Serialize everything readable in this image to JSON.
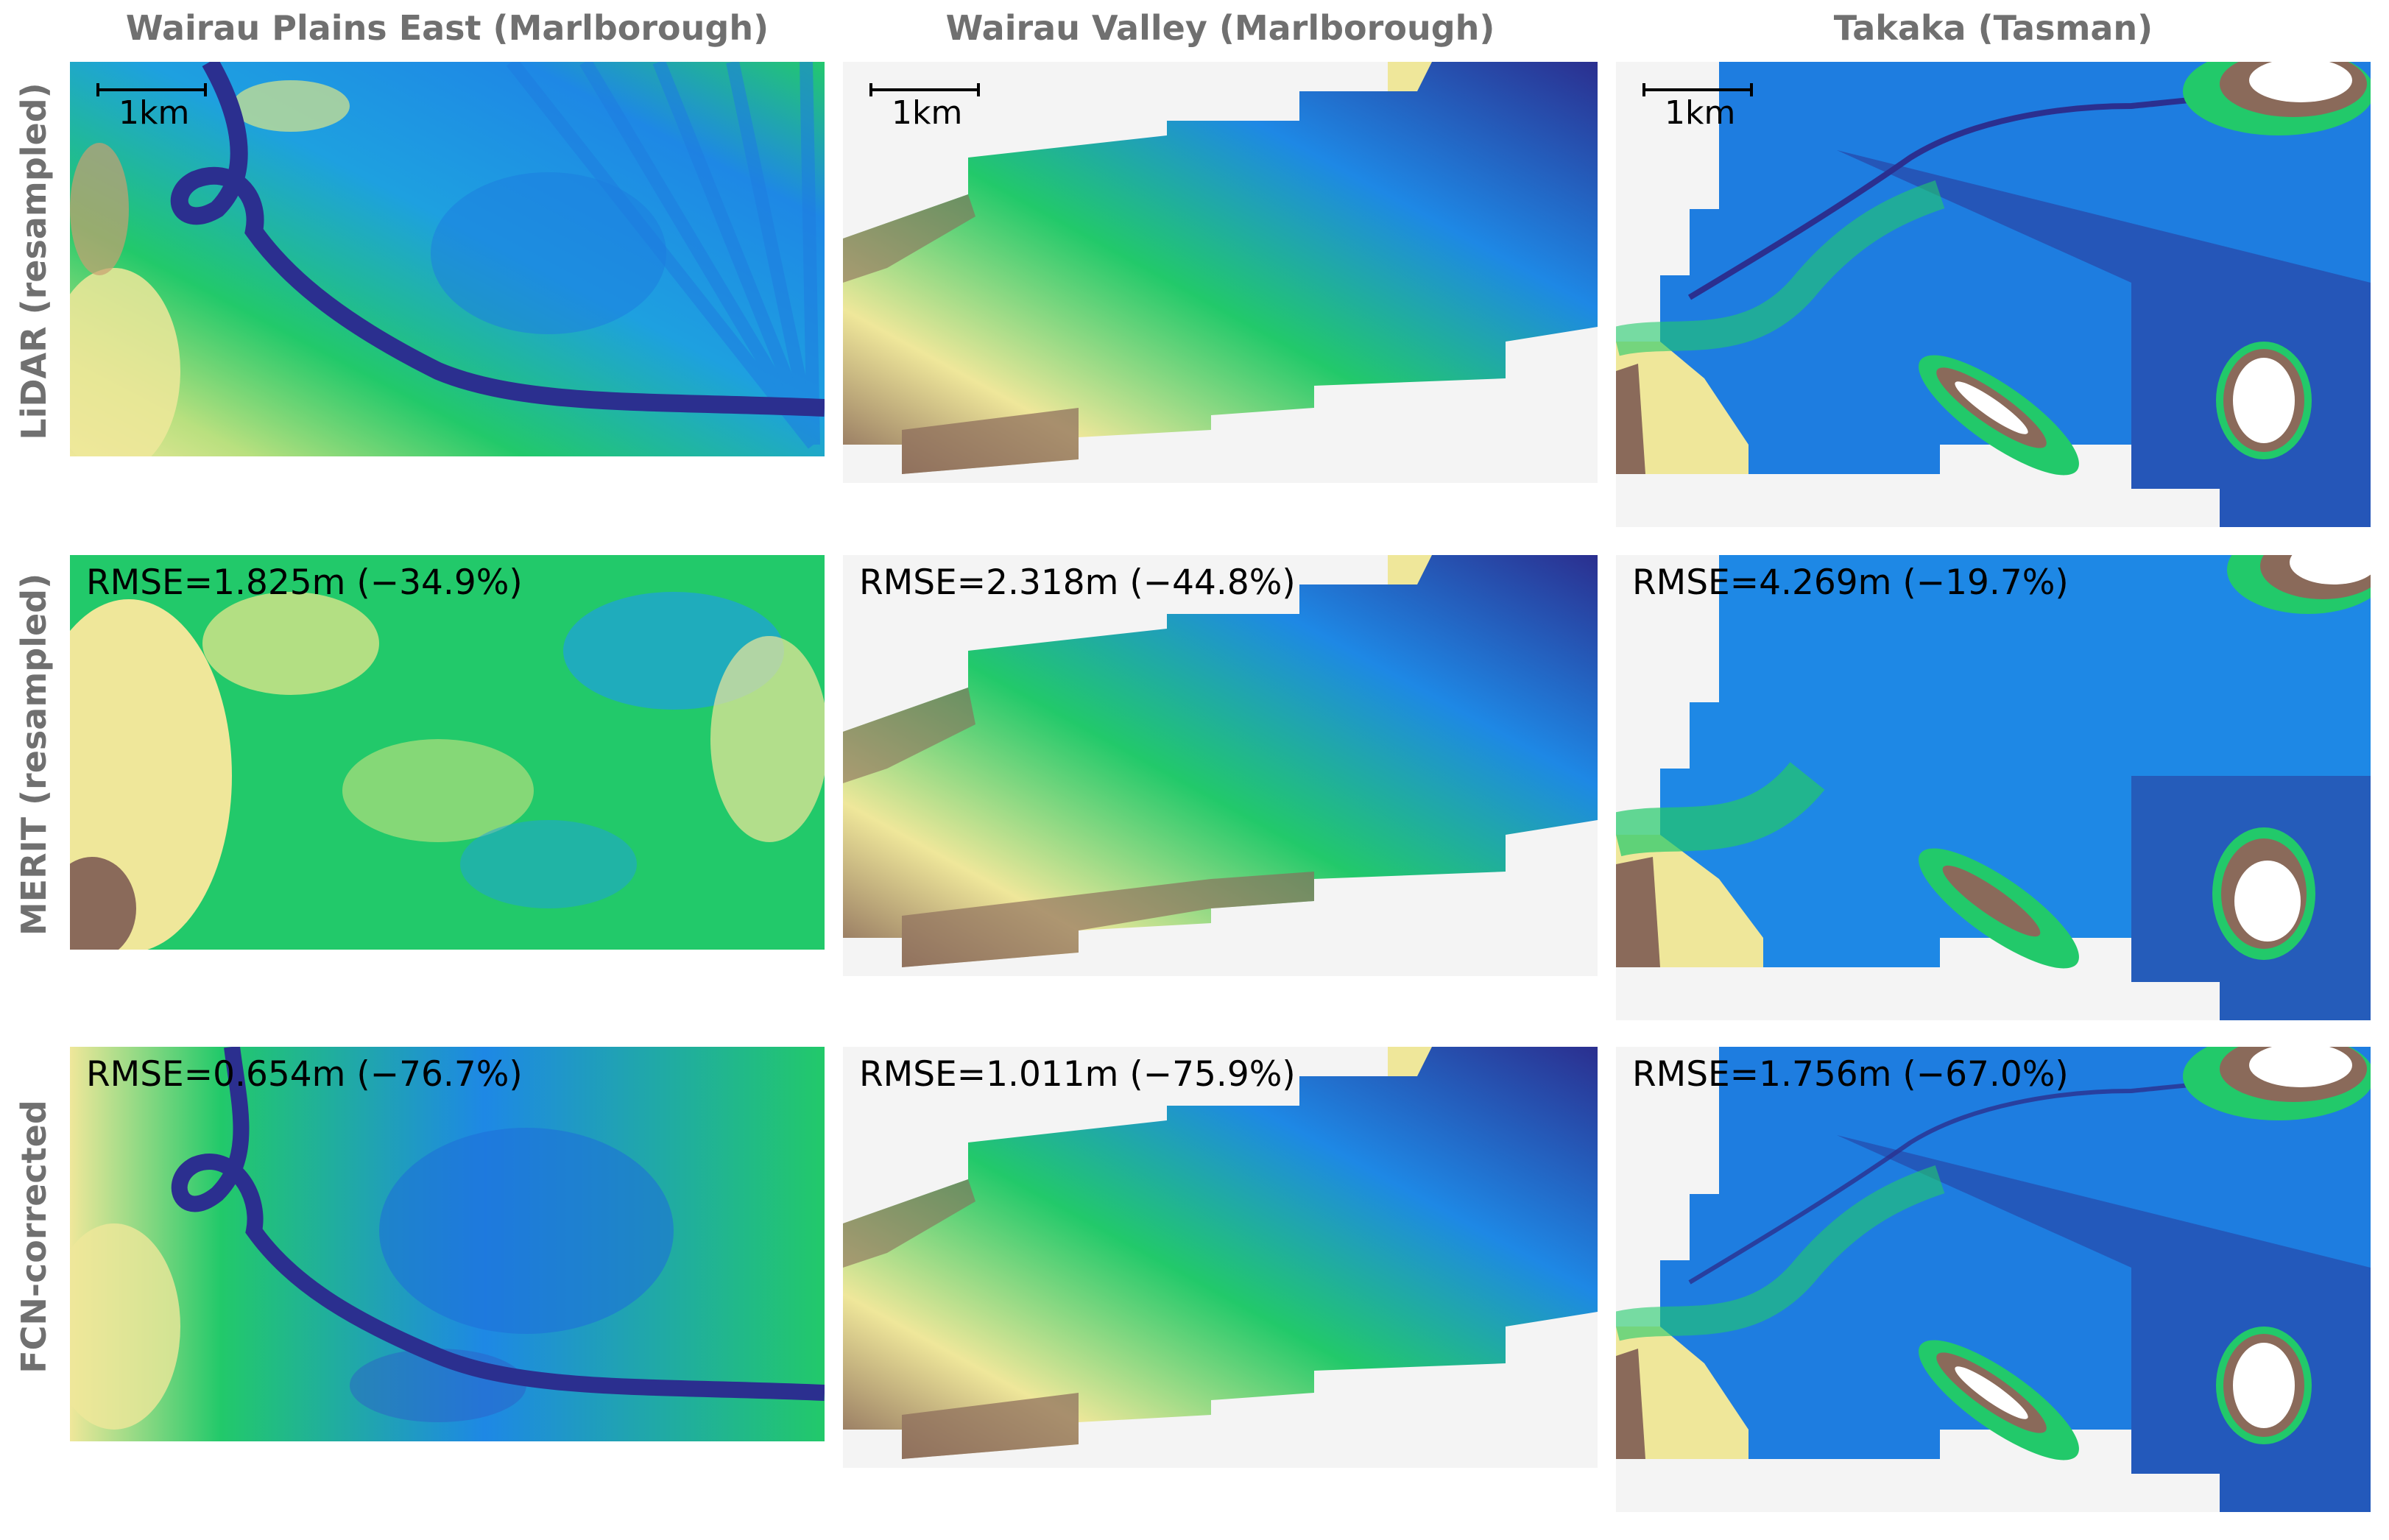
{
  "columns": [
    {
      "title": "Wairau Plains East (Marlborough)"
    },
    {
      "title": "Wairau Valley (Marlborough)"
    },
    {
      "title": "Takaka (Tasman)"
    }
  ],
  "rows": [
    {
      "label": "LiDAR (resampled)"
    },
    {
      "label": "MERIT (resampled)"
    },
    {
      "label": "FCN-corrected"
    }
  ],
  "scale_bar": {
    "label": "1km"
  },
  "rmse": {
    "merit": [
      "RMSE=1.825m (−34.9%)",
      "RMSE=2.318m (−44.8%)",
      "RMSE=4.269m (−19.7%)"
    ],
    "fcn": [
      "RMSE=0.654m (−76.7%)",
      "RMSE=1.011m (−75.9%)",
      "RMSE=1.756m (−67.0%)"
    ]
  },
  "colors": {
    "deep_blue": "#2b2f8f",
    "blue": "#1e88e5",
    "green": "#22c96a",
    "yellow": "#efe79a",
    "brown": "#8a6a5a",
    "white": "#ffffff",
    "nodata": "#f4f4f4"
  }
}
